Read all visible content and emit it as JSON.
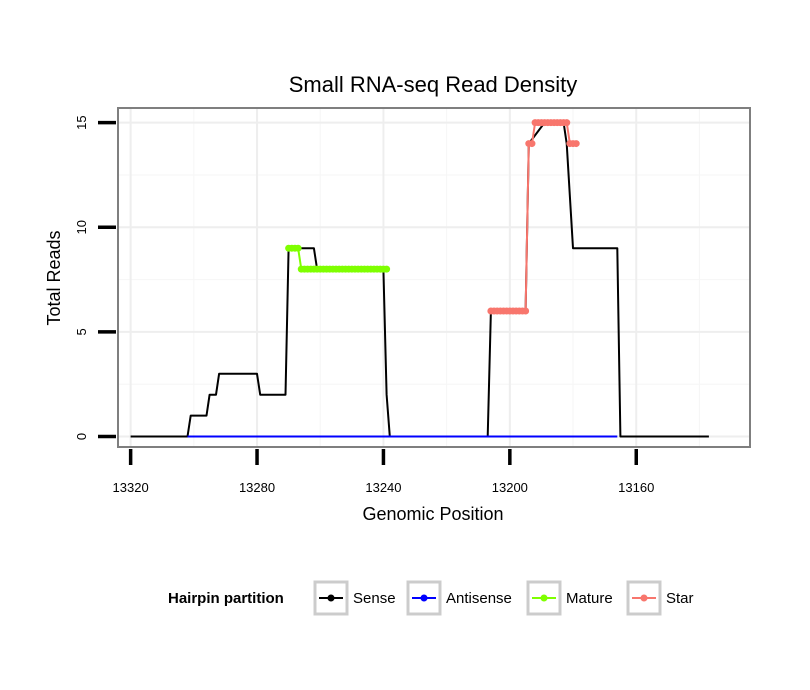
{
  "chart_data": {
    "type": "line",
    "title": "Small RNA-seq Read Density",
    "xlabel": "Genomic Position",
    "ylabel": "Total Reads",
    "x_reversed": true,
    "xlim": [
      13324,
      13124
    ],
    "ylim": [
      -0.5,
      15.7
    ],
    "x_ticks": [
      13320,
      13280,
      13240,
      13200,
      13160
    ],
    "x_tick_labels": [
      "13320",
      "13280",
      "13240",
      "13200",
      "13160"
    ],
    "y_ticks": [
      0,
      5,
      10,
      15
    ],
    "y_tick_labels": [
      "0",
      "5",
      "10",
      "15"
    ],
    "grid": true,
    "legend": {
      "title": "Hairpin partition",
      "position": "bottom",
      "entries": [
        "Sense",
        "Antisense",
        "Mature",
        "Star"
      ]
    },
    "series": [
      {
        "name": "Sense",
        "color": "#000000",
        "marker": false,
        "x": [
          13320,
          13302,
          13301,
          13296,
          13295,
          13293,
          13292,
          13280,
          13279,
          13271,
          13270,
          13262,
          13261,
          13259,
          13258,
          13240,
          13239,
          13238,
          13237,
          13207,
          13206,
          13195,
          13194,
          13189,
          13188,
          13183,
          13182,
          13180,
          13179,
          13166,
          13165,
          13137
        ],
        "y": [
          0,
          0,
          1,
          1,
          2,
          2,
          3,
          3,
          2,
          2,
          9,
          9,
          8,
          8,
          8,
          8,
          2,
          0,
          0,
          0,
          6,
          6,
          14,
          15,
          15,
          15,
          14,
          9,
          9,
          9,
          0,
          0
        ]
      },
      {
        "name": "Antisense",
        "color": "#0000ff",
        "marker": false,
        "x": [
          13302,
          13166
        ],
        "y": [
          0,
          0
        ]
      },
      {
        "name": "Mature",
        "color": "#7fff00",
        "marker": true,
        "x": [
          13270,
          13269,
          13268,
          13267,
          13266,
          13265,
          13264,
          13263,
          13262,
          13261,
          13260,
          13259,
          13258,
          13257,
          13256,
          13255,
          13254,
          13253,
          13252,
          13251,
          13250,
          13249,
          13248,
          13247,
          13246,
          13245,
          13244,
          13243,
          13242,
          13241,
          13240,
          13239
        ],
        "y": [
          9,
          9,
          9,
          9,
          8,
          8,
          8,
          8,
          8,
          8,
          8,
          8,
          8,
          8,
          8,
          8,
          8,
          8,
          8,
          8,
          8,
          8,
          8,
          8,
          8,
          8,
          8,
          8,
          8,
          8,
          8,
          8
        ]
      },
      {
        "name": "Star",
        "color": "#f8766d",
        "marker": true,
        "x": [
          13206,
          13205,
          13204,
          13203,
          13202,
          13201,
          13200,
          13199,
          13198,
          13197,
          13196,
          13195,
          13194,
          13193,
          13192,
          13191,
          13190,
          13189,
          13188,
          13187,
          13186,
          13185,
          13184,
          13183,
          13182,
          13181,
          13180,
          13179
        ],
        "y": [
          6,
          6,
          6,
          6,
          6,
          6,
          6,
          6,
          6,
          6,
          6,
          6,
          14,
          14,
          15,
          15,
          15,
          15,
          15,
          15,
          15,
          15,
          15,
          15,
          15,
          14,
          14,
          14
        ]
      }
    ]
  }
}
